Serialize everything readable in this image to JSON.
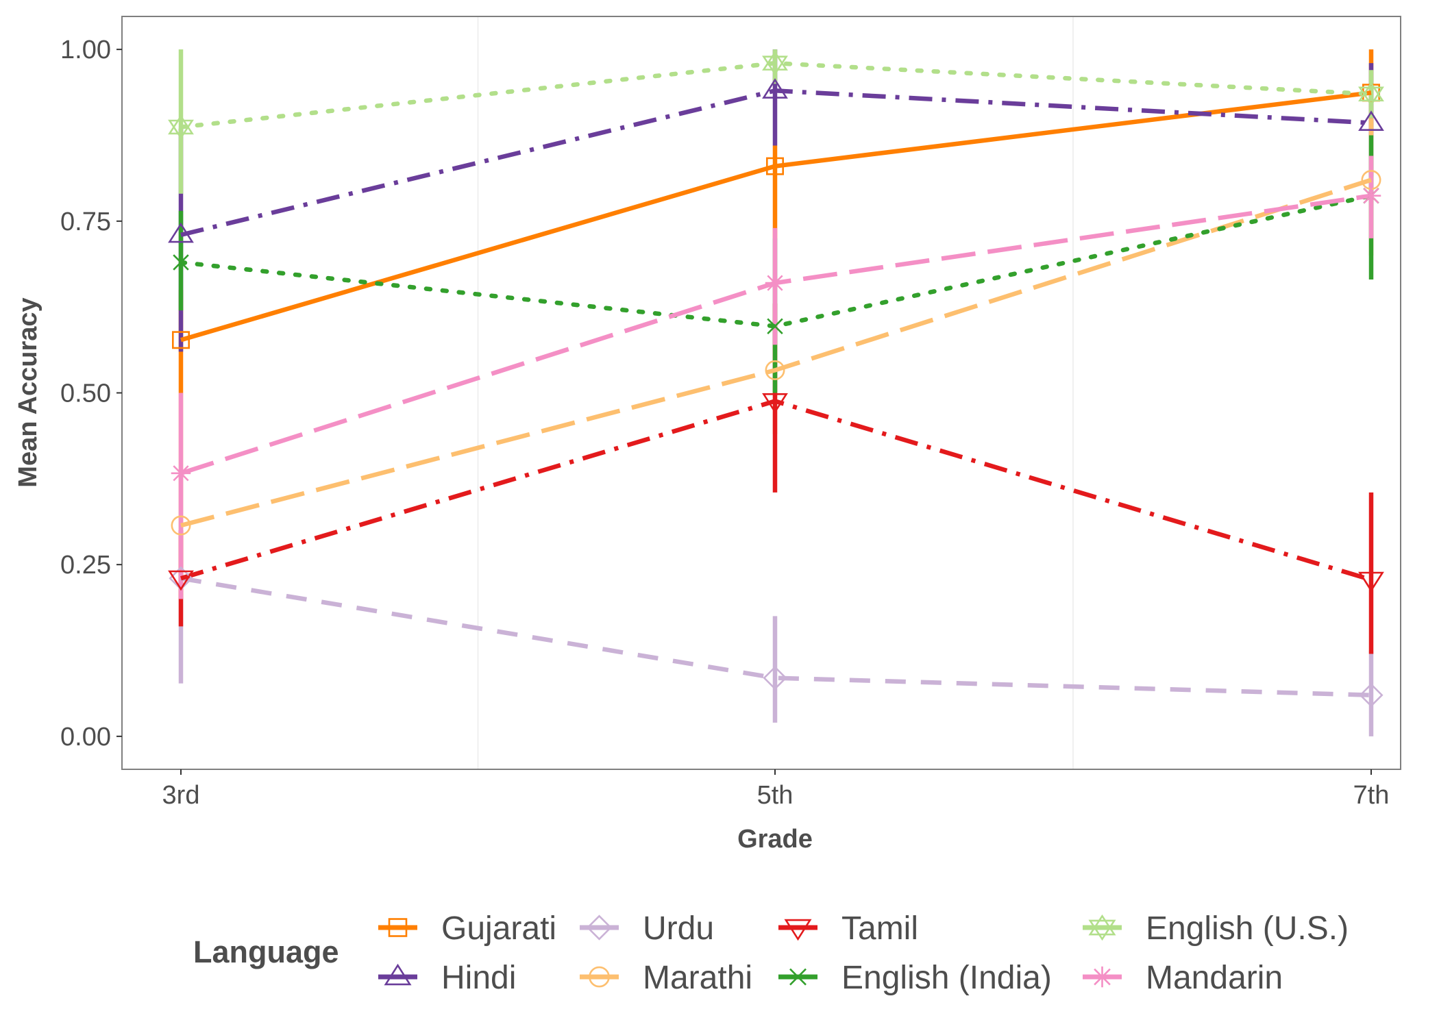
{
  "chart_data": {
    "type": "line",
    "xlabel": "Grade",
    "ylabel": "Mean Accuracy",
    "categories": [
      "3rd",
      "5th",
      "7th"
    ],
    "ylim": [
      -0.048,
      1.048
    ],
    "yticks": [
      0.0,
      0.25,
      0.5,
      0.75,
      1.0
    ],
    "ytick_labels": [
      "0.00",
      "0.25",
      "0.50",
      "0.75",
      "1.00"
    ],
    "grid": "vertical minor lines only",
    "legend": {
      "title": "Language",
      "placement": "bottom"
    },
    "series": [
      {
        "name": "Gujarati",
        "color": "#ff7f00",
        "line": "solid",
        "marker": "square",
        "values": [
          0.577,
          0.83,
          0.937
        ],
        "err_low": [
          0.5,
          0.725,
          0.875
        ],
        "err_high": [
          0.65,
          0.86,
          1.0
        ]
      },
      {
        "name": "Hindi",
        "color": "#6a3d9a",
        "line": "dotdash",
        "marker": "triangle-up",
        "values": [
          0.73,
          0.94,
          0.893
        ],
        "err_low": [
          0.56,
          0.86,
          0.815
        ],
        "err_high": [
          0.885,
          1.0,
          0.98
        ]
      },
      {
        "name": "Urdu",
        "color": "#cab2d6",
        "line": "dashed",
        "marker": "diamond",
        "values": [
          0.23,
          0.085,
          0.06
        ],
        "err_low": [
          0.077,
          0.02,
          0.0
        ],
        "err_high": [
          0.38,
          0.175,
          0.125
        ]
      },
      {
        "name": "Marathi",
        "color": "#fdbf6f",
        "line": "longdash",
        "marker": "circle",
        "values": [
          0.307,
          0.533,
          0.81
        ],
        "err_low": [
          0.2,
          0.44,
          0.7
        ],
        "err_high": [
          0.5,
          0.63,
          0.9
        ]
      },
      {
        "name": "Tamil",
        "color": "#e31a1c",
        "line": "dotdash",
        "marker": "triangle-down",
        "values": [
          0.23,
          0.488,
          0.228
        ],
        "err_low": [
          0.16,
          0.355,
          0.12
        ],
        "err_high": [
          0.3,
          0.63,
          0.355
        ]
      },
      {
        "name": "English (India)",
        "color": "#33a02c",
        "line": "dotted",
        "marker": "x",
        "values": [
          0.69,
          0.597,
          0.787
        ],
        "err_low": [
          0.62,
          0.5,
          0.665
        ],
        "err_high": [
          0.765,
          0.725,
          0.875
        ]
      },
      {
        "name": "English (U.S.)",
        "color": "#b2df8a",
        "line": "dotted",
        "marker": "star",
        "values": [
          0.887,
          0.98,
          0.935
        ],
        "err_low": [
          0.79,
          0.95,
          0.9
        ],
        "err_high": [
          1.0,
          1.0,
          0.97
        ]
      },
      {
        "name": "Mandarin",
        "color": "#f48fc5",
        "line": "longdash",
        "marker": "asterisk",
        "values": [
          0.383,
          0.66,
          0.787
        ],
        "err_low": [
          0.2,
          0.57,
          0.725
        ],
        "err_high": [
          0.5,
          0.74,
          0.845
        ]
      }
    ]
  }
}
